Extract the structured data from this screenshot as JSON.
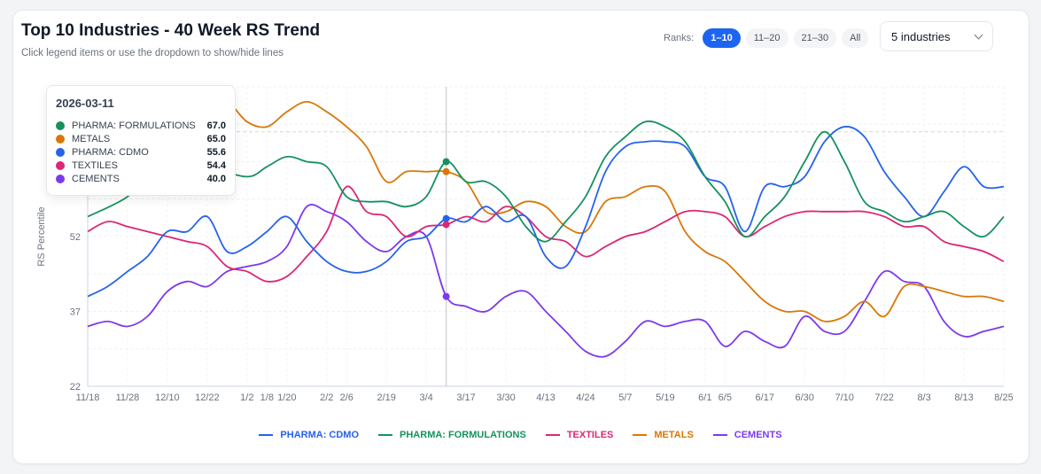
{
  "header": {
    "title": "Top 10 Industries - 40 Week RS Trend",
    "subtitle": "Click legend items or use the dropdown to show/hide lines"
  },
  "ranks": {
    "label": "Ranks:",
    "buttons": [
      {
        "label": "1–10",
        "active": true
      },
      {
        "label": "11–20",
        "active": false
      },
      {
        "label": "21–30",
        "active": false
      },
      {
        "label": "All",
        "active": false
      }
    ]
  },
  "dropdown": {
    "value": "5 industries"
  },
  "tooltip": {
    "date": "2026-03-11",
    "rows": [
      {
        "name": "PHARMA: FORMULATIONS",
        "value": "67.0",
        "color": "#16915f"
      },
      {
        "name": "METALS",
        "value": "65.0",
        "color": "#d97706"
      },
      {
        "name": "PHARMA: CDMO",
        "value": "55.6",
        "color": "#2563eb"
      },
      {
        "name": "TEXTILES",
        "value": "54.4",
        "color": "#db2777"
      },
      {
        "name": "CEMENTS",
        "value": "40.0",
        "color": "#7c3aed"
      }
    ]
  },
  "chart_data": {
    "type": "line",
    "title": "Top 10 Industries - 40 Week RS Trend",
    "ylabel": "RS Percentile",
    "xlabel": "",
    "ylim": [
      22,
      82
    ],
    "yticks": [
      22,
      37,
      52
    ],
    "x_tick_labels": [
      "11/18",
      "11/28",
      "12/10",
      "12/22",
      "1/2",
      "1/8",
      "1/20",
      "2/2",
      "2/6",
      "2/19",
      "3/4",
      "3/17",
      "3/30",
      "4/13",
      "4/24",
      "5/7",
      "5/19",
      "6/1",
      "6/5",
      "6/17",
      "6/30",
      "7/10",
      "7/22",
      "8/3",
      "8/13",
      "8/25"
    ],
    "x_tick_index": [
      0,
      1,
      2,
      3,
      4,
      5,
      6,
      7,
      8,
      9,
      10,
      11,
      12,
      13,
      14,
      15,
      16,
      17,
      18,
      19,
      20,
      21,
      22,
      23,
      24,
      25
    ],
    "x_tick_week": [
      0,
      1,
      2,
      3,
      4,
      4.5,
      5,
      6,
      6.5,
      7.5,
      8.5,
      9.5,
      10.5,
      11.5,
      12.5,
      13.5,
      14.5,
      15.5,
      16,
      17,
      18,
      19,
      20,
      21,
      22,
      23
    ],
    "hover_week": 9,
    "reference_line": 73,
    "grid": true,
    "legend_position": "bottom",
    "series": [
      {
        "name": "PHARMA: CDMO",
        "color": "#2563eb",
        "points": [
          [
            0,
            40
          ],
          [
            0.5,
            42
          ],
          [
            1,
            45
          ],
          [
            1.5,
            48
          ],
          [
            2,
            53
          ],
          [
            2.5,
            53
          ],
          [
            3,
            56
          ],
          [
            3.5,
            49
          ],
          [
            4,
            50
          ],
          [
            4.5,
            53
          ],
          [
            5,
            56
          ],
          [
            5.5,
            51
          ],
          [
            6,
            47
          ],
          [
            6.5,
            45
          ],
          [
            7,
            45
          ],
          [
            7.5,
            47
          ],
          [
            8,
            51
          ],
          [
            8.5,
            52
          ],
          [
            9,
            55.6
          ],
          [
            9.5,
            55
          ],
          [
            10,
            58
          ],
          [
            10.5,
            55
          ],
          [
            11,
            56
          ],
          [
            11.5,
            48
          ],
          [
            12,
            46
          ],
          [
            12.5,
            54
          ],
          [
            13,
            65
          ],
          [
            13.5,
            70
          ],
          [
            14,
            71
          ],
          [
            14.5,
            71
          ],
          [
            15,
            70
          ],
          [
            15.5,
            64
          ],
          [
            16,
            62
          ],
          [
            16.5,
            53
          ],
          [
            17,
            62
          ],
          [
            17.5,
            62
          ],
          [
            18,
            64
          ],
          [
            18.5,
            71
          ],
          [
            19,
            74
          ],
          [
            19.5,
            72
          ],
          [
            20,
            65
          ],
          [
            20.5,
            60
          ],
          [
            21,
            56
          ],
          [
            21.5,
            61
          ],
          [
            22,
            66
          ],
          [
            22.5,
            62
          ],
          [
            23,
            62
          ]
        ]
      },
      {
        "name": "PHARMA: FORMULATIONS",
        "color": "#16915f",
        "points": [
          [
            0,
            56
          ],
          [
            1,
            60
          ],
          [
            1.5,
            65
          ],
          [
            2,
            67
          ],
          [
            3,
            66
          ],
          [
            4,
            64
          ],
          [
            4.5,
            66
          ],
          [
            5,
            68
          ],
          [
            5.5,
            67
          ],
          [
            6,
            66
          ],
          [
            6.5,
            60
          ],
          [
            7,
            59
          ],
          [
            7.5,
            59
          ],
          [
            8,
            58
          ],
          [
            8.5,
            60
          ],
          [
            9,
            67
          ],
          [
            9.5,
            63
          ],
          [
            10,
            63
          ],
          [
            10.5,
            60
          ],
          [
            11,
            54
          ],
          [
            11.5,
            51
          ],
          [
            12,
            55
          ],
          [
            12.5,
            60
          ],
          [
            13,
            68
          ],
          [
            13.5,
            72
          ],
          [
            14,
            75
          ],
          [
            14.5,
            74
          ],
          [
            15,
            71
          ],
          [
            15.5,
            64
          ],
          [
            16,
            59
          ],
          [
            16.5,
            52
          ],
          [
            17,
            56
          ],
          [
            17.5,
            60
          ],
          [
            18,
            67
          ],
          [
            18.5,
            73
          ],
          [
            19,
            67
          ],
          [
            19.5,
            59
          ],
          [
            20,
            57
          ],
          [
            20.5,
            55
          ],
          [
            21,
            56
          ],
          [
            21.5,
            57
          ],
          [
            22,
            54
          ],
          [
            22.5,
            52
          ],
          [
            23,
            56
          ]
        ]
      },
      {
        "name": "TEXTILES",
        "color": "#db2777",
        "points": [
          [
            0,
            53
          ],
          [
            0.5,
            55
          ],
          [
            1,
            54
          ],
          [
            1.5,
            53
          ],
          [
            2,
            52
          ],
          [
            2.5,
            51
          ],
          [
            3,
            50
          ],
          [
            3.5,
            46
          ],
          [
            4,
            45
          ],
          [
            4.5,
            43
          ],
          [
            5,
            44
          ],
          [
            5.5,
            48
          ],
          [
            6,
            53
          ],
          [
            6.5,
            62
          ],
          [
            7,
            57
          ],
          [
            7.5,
            56
          ],
          [
            8,
            52
          ],
          [
            8.5,
            54
          ],
          [
            9,
            54.4
          ],
          [
            9.5,
            56
          ],
          [
            10,
            55
          ],
          [
            10.5,
            58
          ],
          [
            11,
            56
          ],
          [
            11.5,
            52
          ],
          [
            12,
            51
          ],
          [
            12.5,
            48
          ],
          [
            13,
            50
          ],
          [
            13.5,
            52
          ],
          [
            14,
            53
          ],
          [
            14.5,
            55
          ],
          [
            15,
            57
          ],
          [
            15.5,
            57
          ],
          [
            16,
            56
          ],
          [
            16.5,
            52
          ],
          [
            17,
            54
          ],
          [
            17.5,
            56
          ],
          [
            18,
            57
          ],
          [
            18.5,
            57
          ],
          [
            19,
            57
          ],
          [
            19.5,
            57
          ],
          [
            20,
            56
          ],
          [
            20.5,
            54
          ],
          [
            21,
            54
          ],
          [
            21.5,
            51
          ],
          [
            22,
            50
          ],
          [
            22.5,
            49
          ],
          [
            23,
            47
          ]
        ]
      },
      {
        "name": "METALS",
        "color": "#d97706",
        "points": [
          [
            0,
            61
          ],
          [
            0.5,
            62
          ],
          [
            1,
            62
          ],
          [
            1.5,
            66
          ],
          [
            2,
            72
          ],
          [
            2.5,
            77
          ],
          [
            3,
            78
          ],
          [
            3.5,
            79
          ],
          [
            4,
            75
          ],
          [
            4.5,
            74
          ],
          [
            5,
            77
          ],
          [
            5.5,
            79
          ],
          [
            6,
            77
          ],
          [
            6.5,
            74
          ],
          [
            7,
            70
          ],
          [
            7.5,
            63
          ],
          [
            8,
            65
          ],
          [
            8.5,
            65
          ],
          [
            9,
            65
          ],
          [
            9.5,
            63
          ],
          [
            10,
            57
          ],
          [
            10.5,
            57
          ],
          [
            11,
            59
          ],
          [
            11.5,
            58
          ],
          [
            12,
            54
          ],
          [
            12.5,
            53
          ],
          [
            13,
            59
          ],
          [
            13.5,
            60
          ],
          [
            14,
            62
          ],
          [
            14.5,
            61
          ],
          [
            15,
            53
          ],
          [
            15.5,
            49
          ],
          [
            16,
            47
          ],
          [
            16.5,
            43
          ],
          [
            17,
            39
          ],
          [
            17.5,
            37
          ],
          [
            18,
            37
          ],
          [
            18.5,
            35
          ],
          [
            19,
            36
          ],
          [
            19.5,
            39
          ],
          [
            20,
            36
          ],
          [
            20.5,
            42
          ],
          [
            21,
            42
          ],
          [
            21.5,
            41
          ],
          [
            22,
            40
          ],
          [
            22.5,
            40
          ],
          [
            23,
            39
          ]
        ]
      },
      {
        "name": "CEMENTS",
        "color": "#7c3aed",
        "points": [
          [
            0,
            34
          ],
          [
            0.5,
            35
          ],
          [
            1,
            34
          ],
          [
            1.5,
            36
          ],
          [
            2,
            41
          ],
          [
            2.5,
            43
          ],
          [
            3,
            42
          ],
          [
            3.5,
            45
          ],
          [
            4,
            46
          ],
          [
            4.5,
            47
          ],
          [
            5,
            50
          ],
          [
            5.5,
            58
          ],
          [
            6,
            57
          ],
          [
            6.5,
            55
          ],
          [
            7,
            51
          ],
          [
            7.5,
            49
          ],
          [
            8,
            52
          ],
          [
            8.5,
            52
          ],
          [
            9,
            40
          ],
          [
            9.5,
            38
          ],
          [
            10,
            37
          ],
          [
            10.5,
            40
          ],
          [
            11,
            41
          ],
          [
            11.5,
            37
          ],
          [
            12,
            33
          ],
          [
            12.5,
            29
          ],
          [
            13,
            28
          ],
          [
            13.5,
            31
          ],
          [
            14,
            35
          ],
          [
            14.5,
            34
          ],
          [
            15,
            35
          ],
          [
            15.5,
            35
          ],
          [
            16,
            30
          ],
          [
            16.5,
            33
          ],
          [
            17,
            31
          ],
          [
            17.5,
            30
          ],
          [
            18,
            36
          ],
          [
            18.5,
            33
          ],
          [
            19,
            33
          ],
          [
            19.5,
            39
          ],
          [
            20,
            45
          ],
          [
            20.5,
            43
          ],
          [
            21,
            42
          ],
          [
            21.5,
            35
          ],
          [
            22,
            32
          ],
          [
            22.5,
            33
          ],
          [
            23,
            34
          ]
        ]
      }
    ]
  }
}
